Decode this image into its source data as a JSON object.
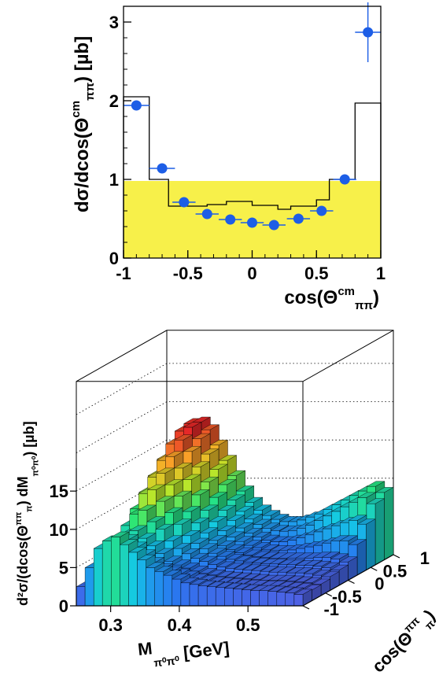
{
  "chart_data": [
    {
      "type": "histogram",
      "xlim": [
        -1,
        1
      ],
      "ylim": [
        0,
        3.2
      ],
      "x_ticks": [
        "-1",
        "-0.5",
        "0",
        "0.5",
        "1"
      ],
      "x_tick_values": [
        -1,
        -0.5,
        0,
        0.5,
        1
      ],
      "y_ticks": [
        "0",
        "1",
        "2",
        "3"
      ],
      "y_tick_values": [
        0,
        1,
        2,
        3
      ],
      "xlabel": {
        "main": "cos(Θ",
        "sup": "cm",
        "sub": "ππ",
        "tail": ")"
      },
      "ylabel": {
        "main": "dσ/dcos(Θ",
        "sup": "cm",
        "sub": "ππ",
        "tail": ") [µb]"
      },
      "band": {
        "color": "#f7f04a",
        "value": 0.98
      },
      "step_series": {
        "edges": [
          -1.0,
          -0.8,
          -0.65,
          -0.5,
          -0.35,
          -0.2,
          0.0,
          0.2,
          0.3,
          0.5,
          0.6,
          0.8,
          1.0
        ],
        "values": [
          2.05,
          1.0,
          0.66,
          0.66,
          0.68,
          0.72,
          0.67,
          0.62,
          0.66,
          0.74,
          1.0,
          1.97
        ]
      },
      "points": {
        "color": "#1d5ee6",
        "x": [
          -0.9,
          -0.7,
          -0.53,
          -0.35,
          -0.17,
          0.0,
          0.17,
          0.36,
          0.54,
          0.72,
          0.9
        ],
        "y": [
          1.94,
          1.14,
          0.71,
          0.56,
          0.49,
          0.45,
          0.42,
          0.5,
          0.6,
          1.0,
          2.87
        ],
        "xerr": [
          0.1,
          0.1,
          0.09,
          0.09,
          0.09,
          0.09,
          0.09,
          0.09,
          0.09,
          0.09,
          0.1
        ],
        "yerr": [
          0.0,
          0.0,
          0.0,
          0.0,
          0.0,
          0.0,
          0.0,
          0.0,
          0.0,
          0.0,
          0.38
        ]
      }
    },
    {
      "type": "lego3d",
      "x_ticks": [
        "0.3",
        "0.4",
        "0.5"
      ],
      "y_ticks": [
        "-1",
        "-0.5",
        "0",
        "0.5",
        "1"
      ],
      "z_ticks": [
        "0",
        "5",
        "10",
        "15"
      ],
      "xlabel": {
        "main": "M",
        "sub": "π⁰π⁰",
        "tail": "  [GeV]"
      },
      "ylabel": {
        "main": "cos(Θ",
        "sup": "ππ",
        "sub": "π",
        "tail": ")"
      },
      "zlabel": {
        "main": "d²σ/(dcos(Θ",
        "sup": "ππ",
        "sub": "π",
        "tail": ") dM",
        "sub2": "π⁰π⁰",
        "tail2": ")  [µb]"
      },
      "xlim": [
        0.25,
        0.58
      ],
      "ylim": [
        -1,
        1
      ],
      "zlim": [
        0,
        18
      ],
      "nx": 26,
      "ny": 10,
      "values": [
        [
          2.5,
          5.0,
          7.5,
          8.5,
          9.0,
          8.0,
          7.0,
          6.0,
          5.0,
          4.5,
          4.0,
          3.5,
          3.0,
          2.8,
          2.6,
          2.5,
          2.4,
          2.3,
          2.2,
          2.1,
          2.0,
          2.0,
          1.9,
          1.8,
          1.7,
          1.5
        ],
        [
          2.3,
          4.5,
          6.5,
          7.5,
          8.0,
          7.0,
          6.0,
          5.0,
          4.2,
          3.8,
          3.5,
          3.2,
          2.8,
          2.6,
          2.4,
          2.3,
          2.2,
          2.1,
          2.0,
          2.0,
          1.9,
          1.9,
          1.8,
          1.7,
          1.6,
          1.4
        ],
        [
          2.2,
          4.5,
          7.0,
          8.0,
          8.5,
          7.5,
          6.5,
          5.5,
          4.5,
          4.0,
          3.6,
          3.2,
          2.9,
          2.7,
          2.5,
          2.4,
          2.3,
          2.2,
          2.1,
          2.0,
          2.0,
          2.0,
          1.9,
          1.8,
          1.7,
          1.5
        ],
        [
          2.4,
          5.5,
          8.5,
          10.0,
          10.5,
          9.0,
          8.0,
          6.5,
          5.5,
          4.8,
          4.2,
          3.8,
          3.4,
          3.1,
          2.9,
          2.8,
          2.7,
          2.6,
          2.5,
          2.4,
          2.4,
          2.3,
          2.3,
          2.2,
          2.0,
          1.8
        ],
        [
          2.6,
          6.5,
          10.0,
          12.0,
          12.5,
          11.0,
          9.5,
          8.0,
          6.5,
          5.5,
          4.8,
          4.2,
          3.8,
          3.4,
          3.2,
          3.0,
          2.9,
          2.8,
          2.8,
          2.7,
          2.7,
          2.6,
          2.6,
          2.5,
          2.3,
          2.0
        ],
        [
          2.8,
          7.5,
          11.5,
          13.5,
          14.0,
          12.5,
          11.0,
          9.0,
          7.5,
          6.2,
          5.2,
          4.5,
          4.0,
          3.6,
          3.3,
          3.1,
          3.0,
          2.9,
          2.9,
          2.9,
          2.9,
          2.9,
          3.0,
          3.0,
          2.8,
          2.4
        ],
        [
          3.0,
          8.5,
          13.0,
          15.0,
          15.5,
          14.0,
          12.5,
          10.5,
          8.5,
          7.0,
          5.8,
          5.0,
          4.4,
          3.9,
          3.6,
          3.3,
          3.2,
          3.2,
          3.3,
          3.5,
          3.7,
          3.9,
          4.2,
          4.5,
          4.5,
          4.0
        ],
        [
          3.3,
          9.5,
          14.5,
          16.5,
          17.0,
          15.5,
          13.5,
          11.5,
          9.5,
          7.8,
          6.5,
          5.5,
          4.8,
          4.3,
          3.9,
          3.7,
          3.7,
          3.9,
          4.2,
          4.6,
          5.0,
          5.4,
          5.8,
          6.2,
          6.5,
          6.0
        ],
        [
          3.6,
          10.5,
          15.5,
          17.5,
          18.0,
          16.5,
          14.5,
          12.5,
          10.5,
          8.5,
          7.0,
          6.0,
          5.3,
          4.8,
          4.5,
          4.4,
          4.5,
          4.8,
          5.2,
          5.8,
          6.4,
          7.0,
          7.6,
          8.2,
          8.8,
          8.0
        ],
        [
          3.8,
          11.0,
          16.0,
          17.8,
          18.0,
          17.0,
          15.0,
          13.0,
          11.0,
          9.0,
          7.5,
          6.5,
          5.8,
          5.3,
          5.0,
          5.0,
          5.2,
          5.6,
          6.0,
          6.6,
          7.2,
          7.8,
          8.4,
          9.0,
          9.6,
          8.8
        ]
      ]
    }
  ]
}
